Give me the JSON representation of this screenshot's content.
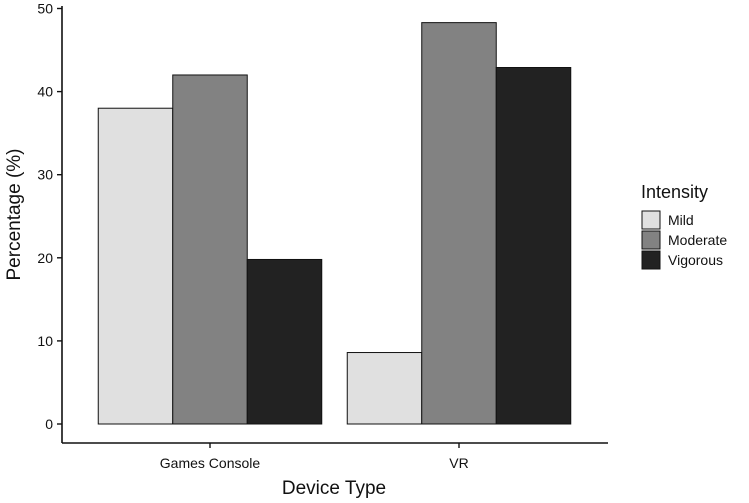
{
  "chart_data": {
    "type": "bar",
    "categories": [
      "Games Console",
      "VR"
    ],
    "series": [
      {
        "name": "Mild",
        "values": [
          38,
          8.6
        ],
        "color": "#e0e0e0"
      },
      {
        "name": "Moderate",
        "values": [
          42,
          48.3
        ],
        "color": "#828282"
      },
      {
        "name": "Vigorous",
        "values": [
          19.8,
          42.9
        ],
        "color": "#222222"
      }
    ],
    "xlabel": "Device Type",
    "ylabel": "Percentage (%)",
    "ylim": [
      0,
      50
    ],
    "yticks": [
      0,
      10,
      20,
      30,
      40,
      50
    ],
    "grid": false,
    "legend": {
      "title": "Intensity",
      "placement": "right"
    }
  }
}
